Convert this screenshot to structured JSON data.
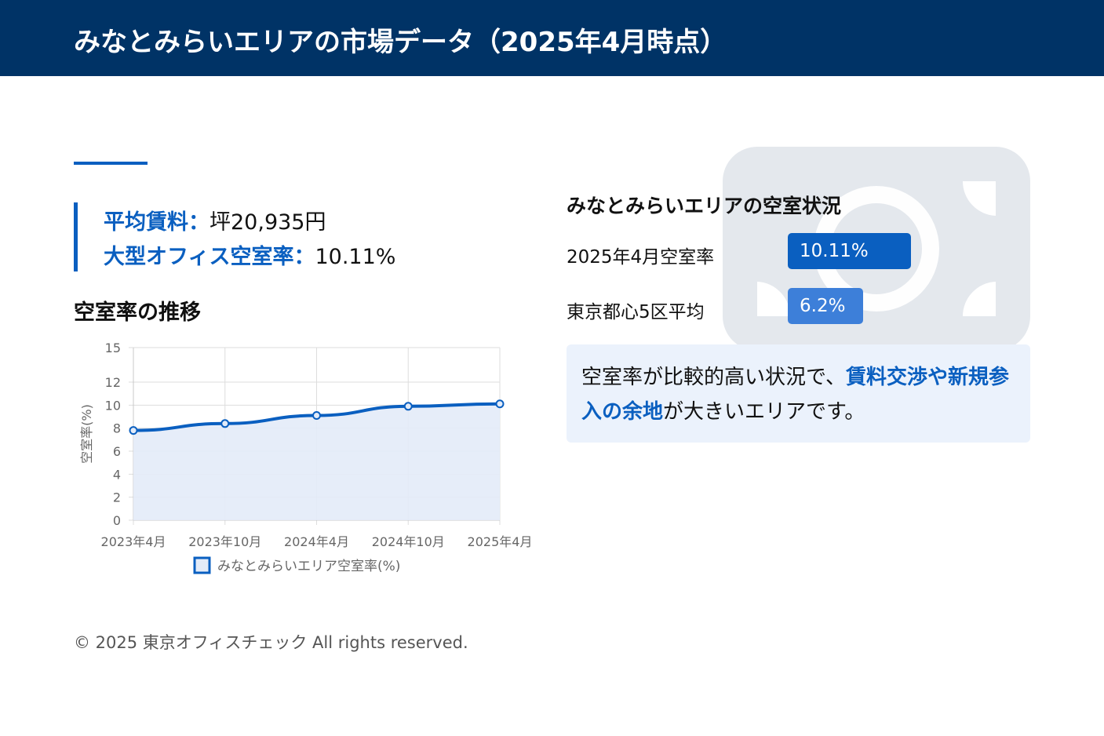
{
  "header": {
    "title": "みなとみらいエリアの市場データ（2025年4月時点）"
  },
  "kpi": {
    "rent_label": "平均賃料：",
    "rent_value": "坪20,935円",
    "vacancy_label": "大型オフィス空室率：",
    "vacancy_value": "10.11%"
  },
  "trend": {
    "title": "空室率の推移"
  },
  "vacancy_status": {
    "title": "みなとみらいエリアの空室状況",
    "rows": [
      {
        "label": "2025年4月空室率",
        "value": "10.11%",
        "fraction": 0.1011,
        "color": "#0a5fc0"
      },
      {
        "label": "東京都心5区平均",
        "value": "6.2%",
        "fraction": 0.062,
        "color": "#3d7fd9"
      }
    ]
  },
  "note": {
    "text_before": "空室率が比較的高い状況で、",
    "highlight": "賃料交渉や新規参入の余地",
    "text_after": "が大きいエリアです。"
  },
  "footer": {
    "copyright": "© 2025 東京オフィスチェック All rights reserved."
  },
  "colors": {
    "header_bg": "#003366",
    "accent": "#0a5fc0",
    "note_bg": "#ebf2fc",
    "series_fill": "#e3ebf8"
  },
  "chart_data": {
    "type": "area",
    "categories": [
      "2023年4月",
      "2023年10月",
      "2024年4月",
      "2024年10月",
      "2025年4月"
    ],
    "series": [
      {
        "name": "みなとみらいエリア空室率(%)",
        "values": [
          7.8,
          8.4,
          9.1,
          9.9,
          10.11
        ]
      }
    ],
    "ylabel": "空室率(%)",
    "xlabel": "",
    "yticks": [
      0,
      2,
      4,
      6,
      8,
      10,
      12,
      15
    ],
    "ylim": [
      0,
      15
    ],
    "grid": true,
    "legend": "bottom"
  }
}
